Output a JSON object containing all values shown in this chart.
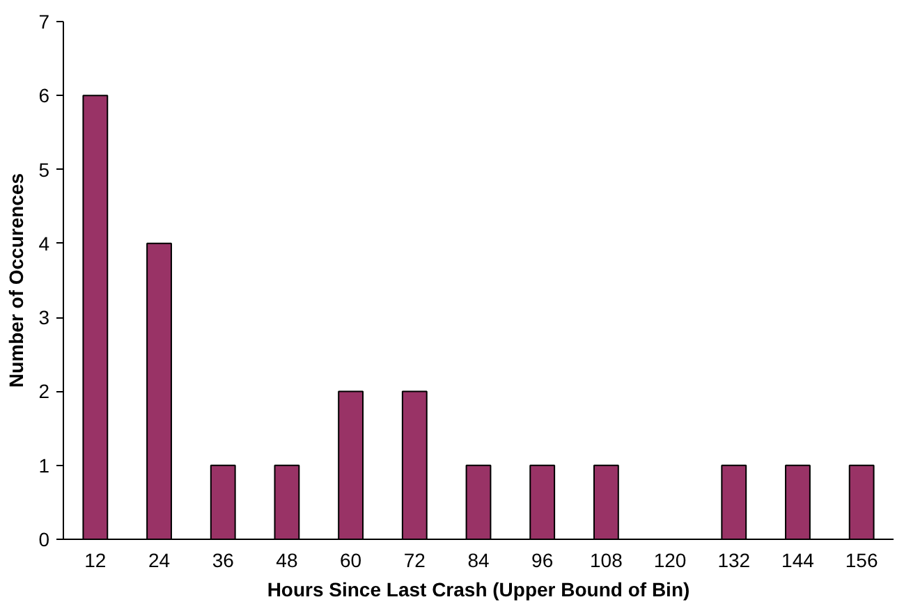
{
  "chart_data": {
    "type": "bar",
    "xlabel": "Hours Since Last Crash (Upper Bound of Bin)",
    "ylabel": "Number of Occurences",
    "categories": [
      "12",
      "24",
      "36",
      "48",
      "60",
      "72",
      "84",
      "96",
      "108",
      "120",
      "132",
      "144",
      "156"
    ],
    "values": [
      6,
      4,
      1,
      1,
      2,
      2,
      1,
      1,
      1,
      0,
      1,
      1,
      1
    ],
    "color": "#993366",
    "ylim": [
      0,
      7
    ],
    "yticks": [
      0,
      1,
      2,
      3,
      4,
      5,
      6,
      7
    ],
    "grid": false
  }
}
